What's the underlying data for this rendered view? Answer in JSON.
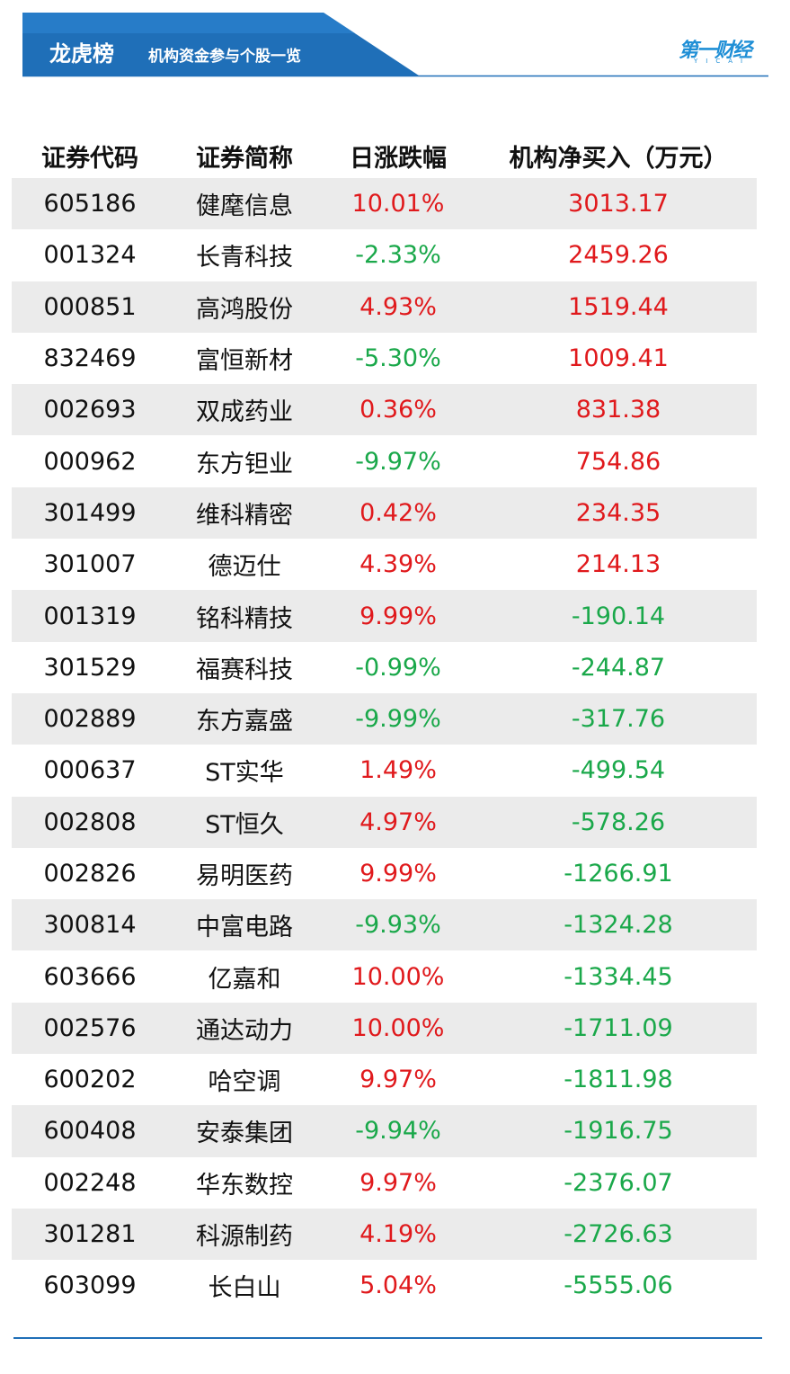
{
  "header": {
    "title": "龙虎榜",
    "subtitle": "机构资金参与个股一览",
    "logo": "第一财经",
    "logo_sub": "YICAI"
  },
  "table": {
    "columns": [
      "证券代码",
      "证券简称",
      "日涨跌幅",
      "机构净买入（万元）"
    ],
    "rows": [
      [
        "605186",
        "健麾信息",
        "10.01%",
        "3013.17"
      ],
      [
        "001324",
        "长青科技",
        "-2.33%",
        "2459.26"
      ],
      [
        "000851",
        "高鸿股份",
        "4.93%",
        "1519.44"
      ],
      [
        "832469",
        "富恒新材",
        "-5.30%",
        "1009.41"
      ],
      [
        "002693",
        "双成药业",
        "0.36%",
        "831.38"
      ],
      [
        "000962",
        "东方钽业",
        "-9.97%",
        "754.86"
      ],
      [
        "301499",
        "维科精密",
        "0.42%",
        "234.35"
      ],
      [
        "301007",
        "德迈仕",
        "4.39%",
        "214.13"
      ],
      [
        "001319",
        "铭科精技",
        "9.99%",
        "-190.14"
      ],
      [
        "301529",
        "福赛科技",
        "-0.99%",
        "-244.87"
      ],
      [
        "002889",
        "东方嘉盛",
        "-9.99%",
        "-317.76"
      ],
      [
        "000637",
        "ST实华",
        "1.49%",
        "-499.54"
      ],
      [
        "002808",
        "ST恒久",
        "4.97%",
        "-578.26"
      ],
      [
        "002826",
        "易明医药",
        "9.99%",
        "-1266.91"
      ],
      [
        "300814",
        "中富电路",
        "-9.93%",
        "-1324.28"
      ],
      [
        "603666",
        "亿嘉和",
        "10.00%",
        "-1334.45"
      ],
      [
        "002576",
        "通达动力",
        "10.00%",
        "-1711.09"
      ],
      [
        "600202",
        "哈空调",
        "9.97%",
        "-1811.98"
      ],
      [
        "600408",
        "安泰集团",
        "-9.94%",
        "-1916.75"
      ],
      [
        "002248",
        "华东数控",
        "9.97%",
        "-2376.07"
      ],
      [
        "301281",
        "科源制药",
        "4.19%",
        "-2726.63"
      ],
      [
        "603099",
        "长白山",
        "5.04%",
        "-5555.06"
      ]
    ]
  }
}
